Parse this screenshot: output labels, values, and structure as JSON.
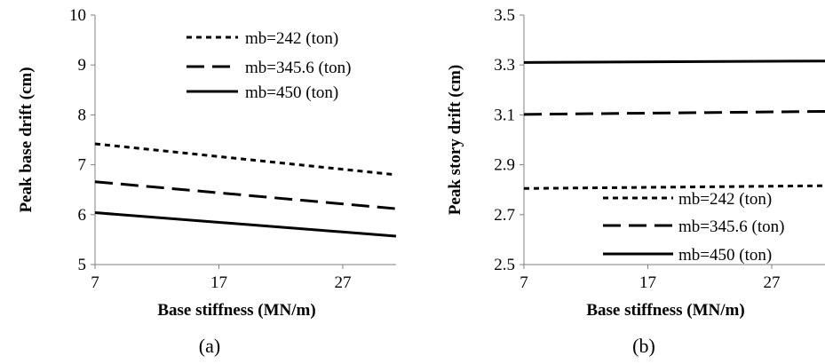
{
  "chart_data": [
    {
      "type": "line",
      "caption": "(a)",
      "xlabel": "Base stiffness (MN/m)",
      "ylabel": "Peak base drift (cm)",
      "xlim": [
        7,
        31.3
      ],
      "ylim": [
        5,
        10
      ],
      "xticks": [
        "7",
        "17",
        "27"
      ],
      "yticks": [
        "5",
        "6",
        "7",
        "8",
        "9",
        "10"
      ],
      "grid": false,
      "legend_position": "top-right",
      "x": [
        7,
        31.3
      ],
      "series": [
        {
          "name": "mb=242 (ton)",
          "values": [
            7.42,
            6.8
          ],
          "dash": "6,5"
        },
        {
          "name": "mb=345.6 (ton)",
          "values": [
            6.66,
            6.12
          ],
          "dash": "20,9"
        },
        {
          "name": "mb=450 (ton)",
          "values": [
            6.04,
            5.57
          ],
          "dash": ""
        }
      ]
    },
    {
      "type": "line",
      "caption": "(b)",
      "xlabel": "Base stiffness (MN/m)",
      "ylabel": "Peak story drift (cm)",
      "xlim": [
        7,
        31.3
      ],
      "ylim": [
        2.5,
        3.5
      ],
      "xticks": [
        "7",
        "17",
        "27"
      ],
      "yticks": [
        "2.5",
        "2.7",
        "2.9",
        "3.1",
        "3.3",
        "3.5"
      ],
      "grid": false,
      "legend_position": "bottom-right",
      "x": [
        7,
        31.3
      ],
      "series": [
        {
          "name": "mb=242 (ton)",
          "values": [
            2.805,
            2.816
          ],
          "dash": "6,5"
        },
        {
          "name": "mb=345.6 (ton)",
          "values": [
            3.102,
            3.114
          ],
          "dash": "20,9"
        },
        {
          "name": "mb=450 (ton)",
          "values": [
            3.31,
            3.316
          ],
          "dash": ""
        }
      ]
    }
  ]
}
